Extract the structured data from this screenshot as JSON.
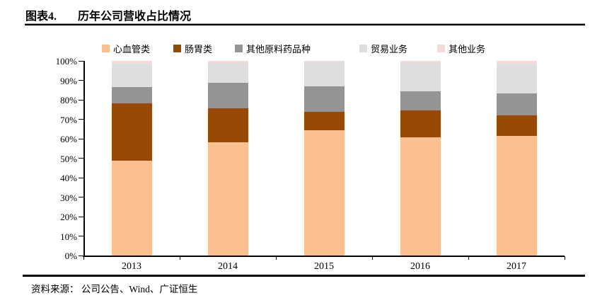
{
  "header": {
    "figure_label": "图表4.",
    "title": "历年公司营收占比情况"
  },
  "footer": {
    "source": "资料来源： 公司公告、Wind、广证恒生"
  },
  "chart_data": {
    "type": "bar",
    "stacked": true,
    "title": "历年公司营收占比情况",
    "categories": [
      "2013",
      "2014",
      "2015",
      "2016",
      "2017"
    ],
    "series": [
      {
        "name": "心血管类",
        "color": "#FAC090",
        "values": [
          48.8,
          58.3,
          64.4,
          60.6,
          61.3
        ]
      },
      {
        "name": "肠胃类",
        "color": "#984807",
        "values": [
          29.3,
          17.2,
          9.3,
          13.9,
          10.6
        ]
      },
      {
        "name": "其他原料药品种",
        "color": "#949494",
        "values": [
          8.5,
          13.1,
          13.3,
          9.7,
          11.3
        ]
      },
      {
        "name": "贸易业务",
        "color": "#DEDEDE",
        "values": [
          11.8,
          10.3,
          12.6,
          15.0,
          15.1
        ]
      },
      {
        "name": "其他业务",
        "color": "#F2DBD9",
        "values": [
          1.6,
          1.1,
          0.4,
          0.8,
          1.7
        ]
      }
    ],
    "ylim": [
      0,
      100
    ],
    "ytick_values": [
      0,
      10,
      20,
      30,
      40,
      50,
      60,
      70,
      80,
      90,
      100
    ],
    "ytick_labels": [
      "0%",
      "10%",
      "20%",
      "30%",
      "40%",
      "50%",
      "60%",
      "70%",
      "80%",
      "90%",
      "100%"
    ],
    "xlabel": "",
    "ylabel": "",
    "grid": false,
    "legend_position": "top"
  }
}
